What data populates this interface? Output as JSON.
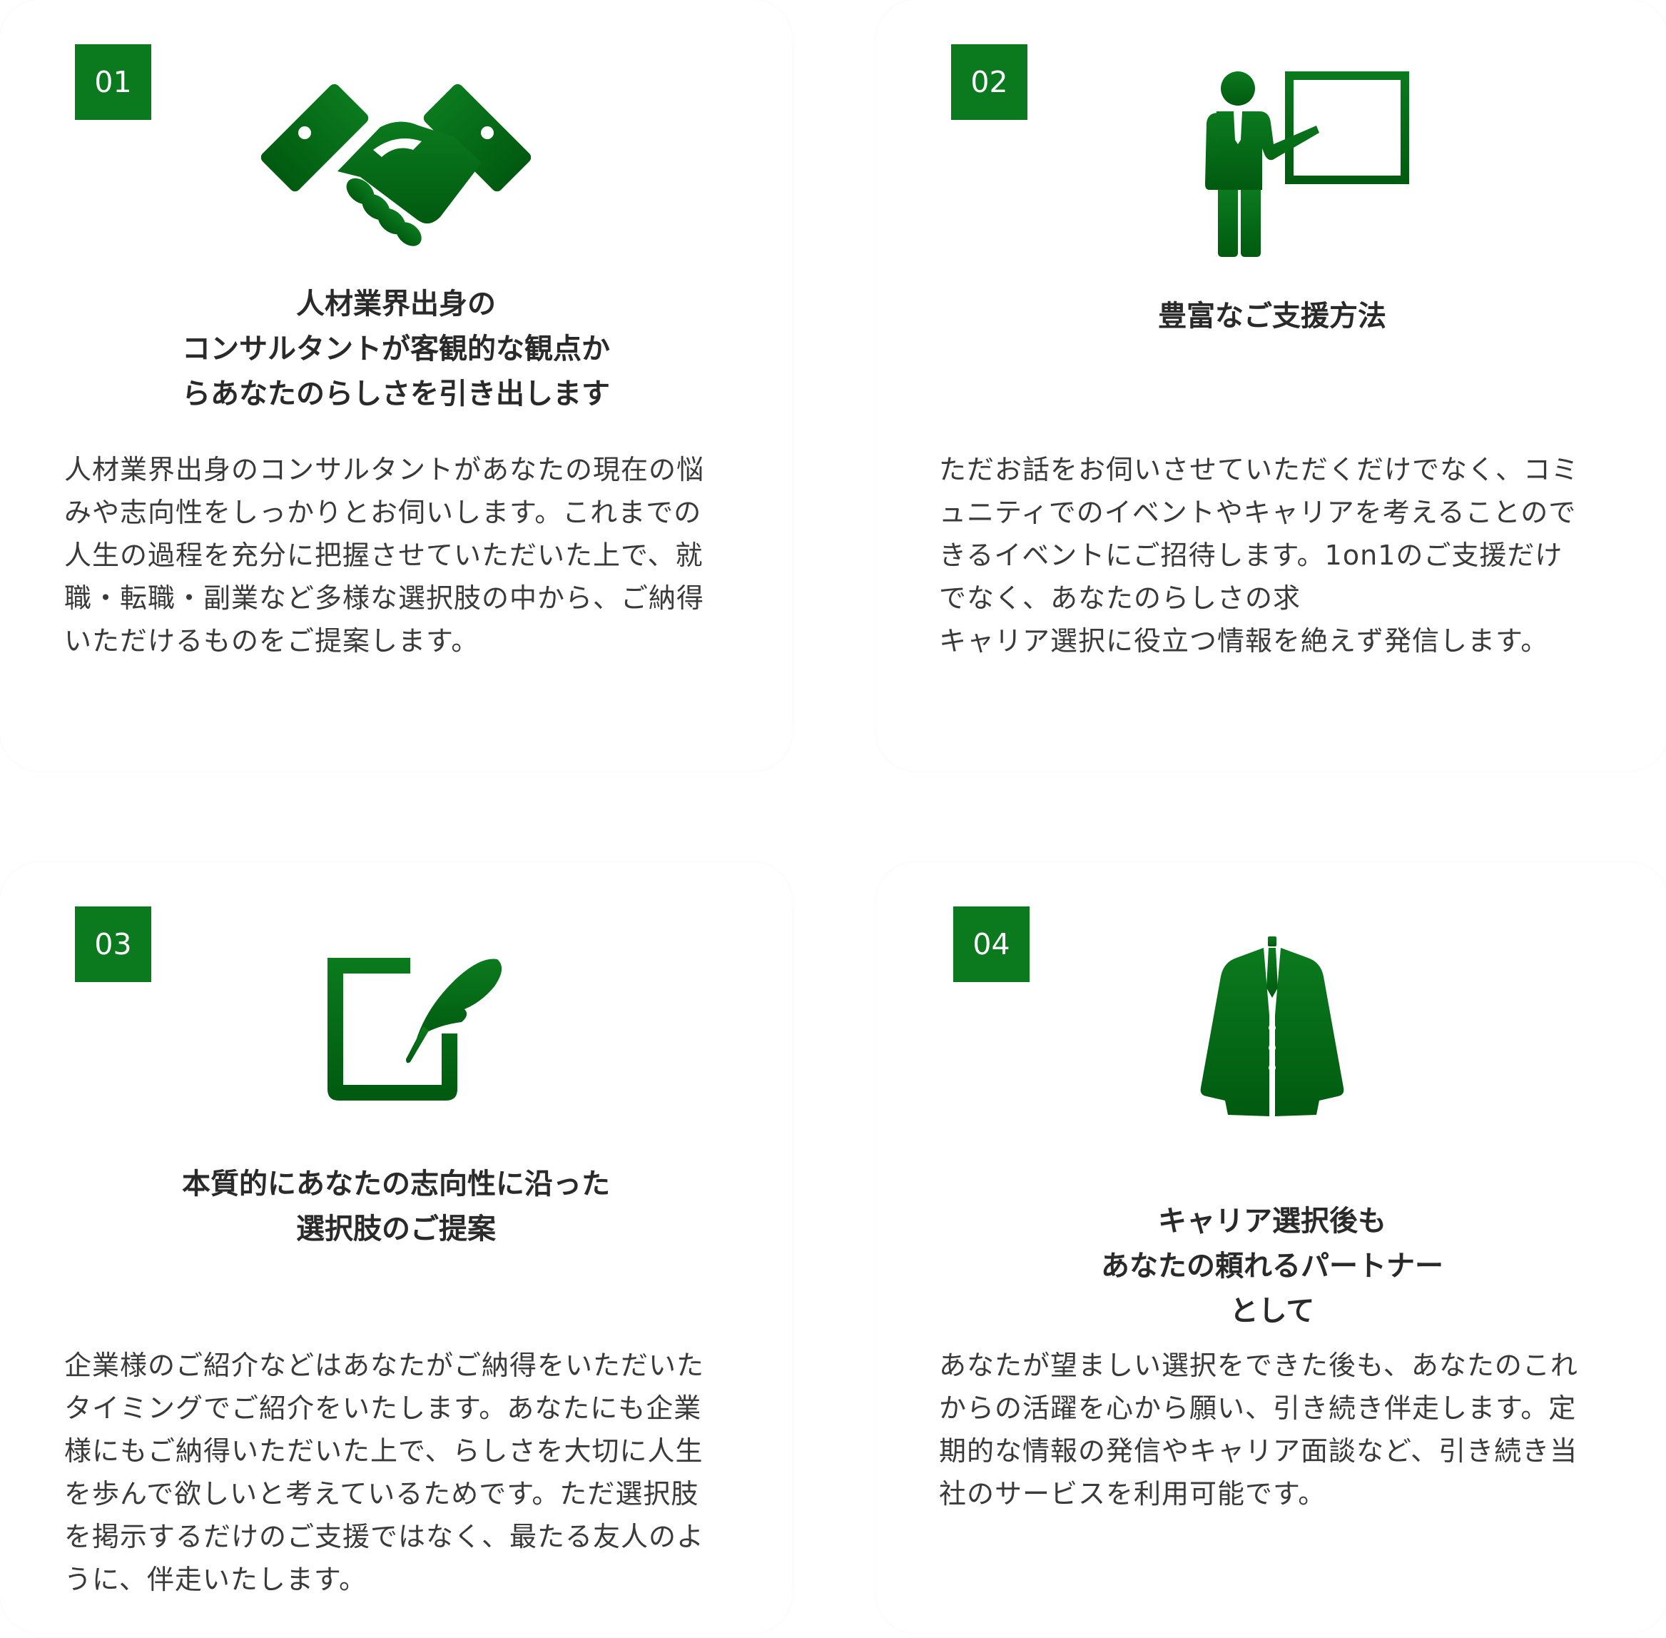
{
  "colors": {
    "accent": "#0b7a1e",
    "accent_dark": "#005a10"
  },
  "cards": [
    {
      "number": "01",
      "icon": "handshake-icon",
      "title": "人材業界出身の\nコンサルタントが客観的な観点か\nらあなたのらしさを引き出します",
      "description": "人材業界出身のコンサルタントがあなたの現在の悩\nみや志向性をしっかりとお伺いします。これまでの\n人生の過程を充分に把握させていただいた上で、就\n職・転職・副業など多様な選択肢の中から、ご納得\nいただけるものをご提案します。"
    },
    {
      "number": "02",
      "icon": "presenter-whiteboard-icon",
      "title": "豊富なご支援方法",
      "description": "ただお話をお伺いさせていただくだけでなく、コミ\nュニティでのイベントやキャリアを考えることので\nきるイベントにご招待します。1on1のご支援だけ\nでなく、あなたのらしさの求\nキャリア選択に役立つ情報を絶えず発信します。"
    },
    {
      "number": "03",
      "icon": "edit-note-icon",
      "title": "本質的にあなたの志向性に沿った\n選択肢のご提案",
      "description": "企業様のご紹介などはあなたがご納得をいただいた\nタイミングでご紹介をいたします。あなたにも企業\n様にもご納得いただいた上で、らしさを大切に人生\nを歩んで欲しいと考えているためです。ただ選択肢\nを掲示するだけのご支援ではなく、最たる友人のよ\nうに、伴走いたします。"
    },
    {
      "number": "04",
      "icon": "suit-jacket-icon",
      "title": "キャリア選択後も\nあなたの頼れるパートナー\nとして",
      "description": "あなたが望ましい選択をできた後も、あなたのこれ\nからの活躍を心から願い、引き続き伴走します。定\n期的な情報の発信やキャリア面談など、引き続き当\n社のサービスを利用可能です。"
    }
  ]
}
